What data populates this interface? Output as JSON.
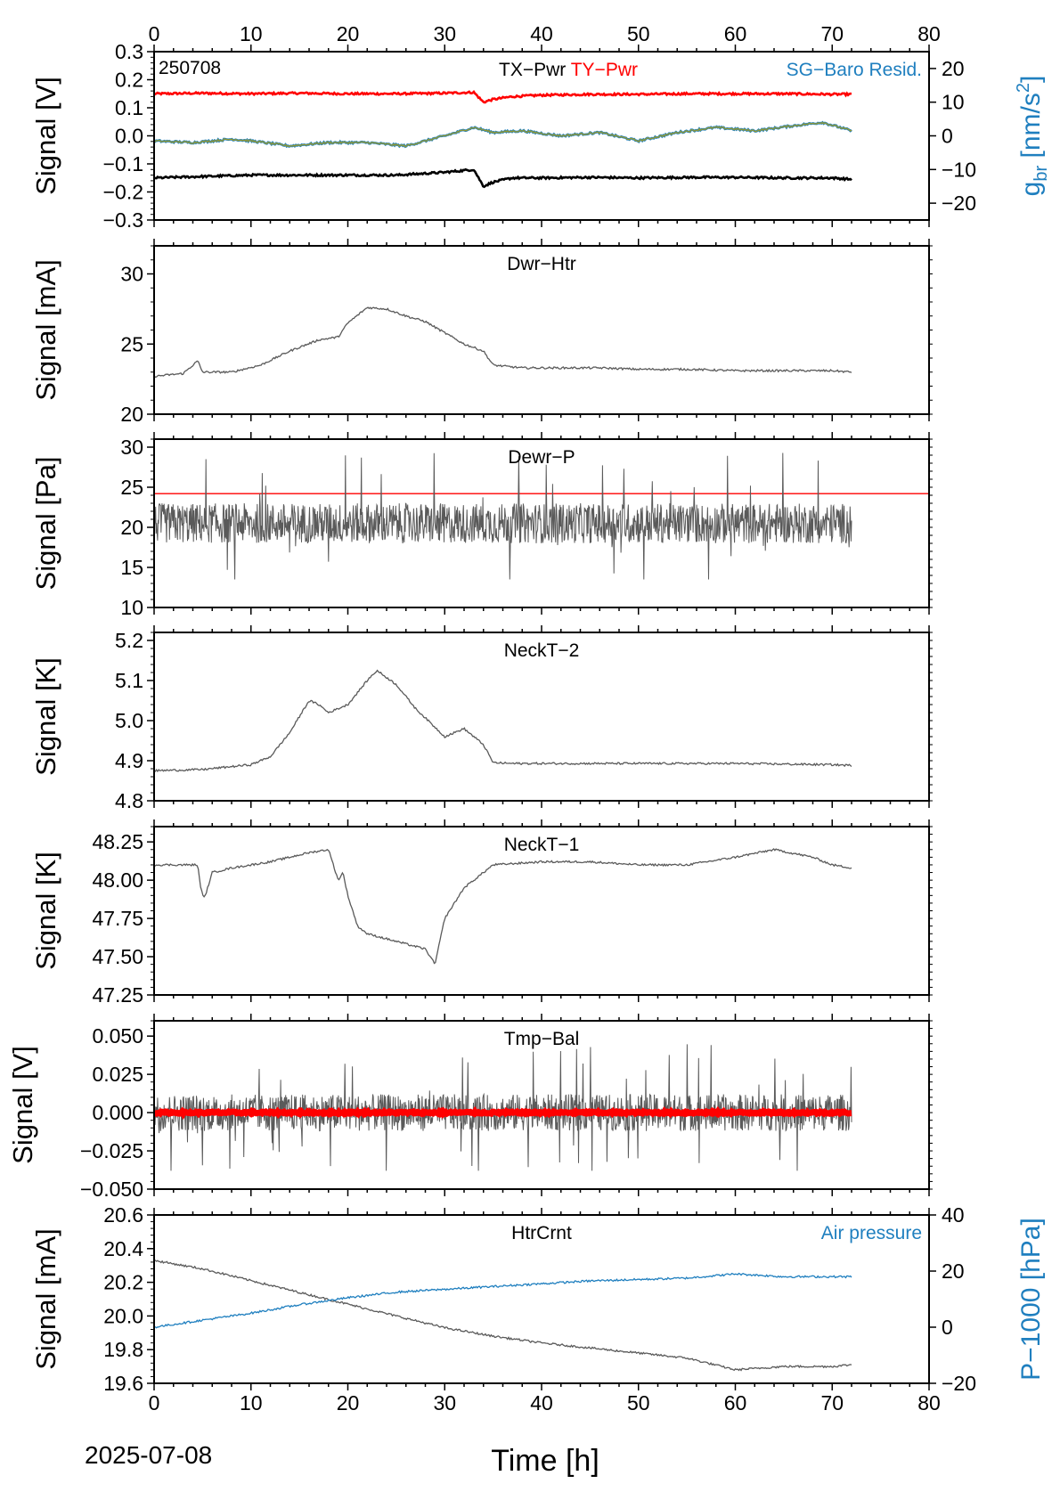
{
  "figure": {
    "date": "2025-07-08",
    "xlabel": "Time [h]",
    "xlim": [
      0,
      80
    ],
    "xticks": [
      0,
      10,
      20,
      30,
      40,
      50,
      60,
      70,
      80
    ],
    "colors": {
      "black": "#000000",
      "red": "#ff0000",
      "blue": "#1f7fbf",
      "gray": "#5a5a5a",
      "olive": "#9a9a2a",
      "axis": "#000000"
    }
  },
  "chart_data": [
    {
      "type": "line",
      "id": "p1",
      "corner_label": "250708",
      "title_parts": [
        {
          "text": "TX−Pwr",
          "color": "#000000"
        },
        {
          "text": "TY−Pwr",
          "color": "#ff0000"
        }
      ],
      "right_legend": {
        "text": "SG−Baro Resid.",
        "color": "#1f7fbf"
      },
      "ylabel": "Signal [V]",
      "ylim": [
        -0.3,
        0.3
      ],
      "yticks": [
        -0.3,
        -0.2,
        -0.1,
        0.0,
        0.1,
        0.2,
        0.3
      ],
      "ytick_labels": [
        "−0.3",
        "−0.2",
        "−0.1",
        "0.0",
        "0.1",
        "0.2",
        "0.3"
      ],
      "right_axis": {
        "label": "g_br [nm/s²]",
        "label_main": "g",
        "label_sub": "br",
        "label_rest": " [nm/s",
        "label_sup": "2",
        "label_end": "]",
        "ylim": [
          -25,
          25
        ],
        "yticks": [
          -20,
          -10,
          0,
          10,
          20
        ],
        "ytick_labels": [
          "−20",
          "−10",
          "0",
          "10",
          "20"
        ],
        "color": "#1f7fbf"
      },
      "series": [
        {
          "name": "TY−Pwr",
          "color": "#ff0000",
          "x": [
            0,
            5,
            10,
            15,
            20,
            25,
            30,
            33,
            34,
            35,
            37,
            40,
            45,
            50,
            55,
            60,
            65,
            70,
            72
          ],
          "y": [
            0.15,
            0.152,
            0.15,
            0.152,
            0.15,
            0.15,
            0.152,
            0.155,
            0.12,
            0.13,
            0.14,
            0.145,
            0.148,
            0.148,
            0.15,
            0.15,
            0.15,
            0.148,
            0.148
          ]
        },
        {
          "name": "TX−Pwr",
          "color": "#000000",
          "x": [
            0,
            5,
            10,
            15,
            20,
            25,
            30,
            33,
            34,
            35,
            37,
            40,
            45,
            50,
            55,
            60,
            65,
            70,
            72
          ],
          "y": [
            -0.15,
            -0.145,
            -0.14,
            -0.14,
            -0.14,
            -0.14,
            -0.13,
            -0.12,
            -0.18,
            -0.165,
            -0.15,
            -0.15,
            -0.148,
            -0.15,
            -0.148,
            -0.148,
            -0.15,
            -0.15,
            -0.155
          ]
        },
        {
          "name": "SG−Baro Resid.",
          "color": "#1f7fbf",
          "axis": "right",
          "x": [
            0,
            4,
            8,
            10,
            14,
            18,
            22,
            26,
            30,
            33,
            35,
            38,
            42,
            46,
            50,
            54,
            58,
            62,
            66,
            69,
            72
          ],
          "y": [
            -1.5,
            -2,
            -1,
            -1.5,
            -3,
            -2,
            -2,
            -3,
            0,
            2.5,
            1,
            1.5,
            0,
            1,
            -1.5,
            1,
            2.5,
            1.5,
            3,
            4,
            1.5
          ]
        }
      ]
    },
    {
      "type": "line",
      "id": "p2",
      "title": "Dwr−Htr",
      "ylabel": "Signal [mA]",
      "ylim": [
        20,
        32
      ],
      "yticks": [
        20,
        25,
        30
      ],
      "ytick_labels": [
        "20",
        "25",
        "30"
      ],
      "series": [
        {
          "color": "#5a5a5a",
          "x": [
            0,
            3,
            4.5,
            5,
            8,
            11,
            14,
            17,
            19,
            20,
            22,
            24,
            26,
            28,
            30,
            32,
            34,
            35,
            38,
            42,
            46,
            50,
            55,
            60,
            65,
            70,
            72
          ],
          "y": [
            22.7,
            22.9,
            23.8,
            23.0,
            23.0,
            23.5,
            24.5,
            25.3,
            25.5,
            26.5,
            27.6,
            27.5,
            27.0,
            26.6,
            25.8,
            25.0,
            24.5,
            23.5,
            23.3,
            23.3,
            23.3,
            23.2,
            23.2,
            23.1,
            23.1,
            23.1,
            23.0
          ]
        }
      ]
    },
    {
      "type": "line",
      "id": "p3",
      "title": "Dewr−P",
      "ylabel": "Signal [Pa]",
      "ylim": [
        10,
        31
      ],
      "yticks": [
        10,
        15,
        20,
        25,
        30
      ],
      "ytick_labels": [
        "10",
        "15",
        "20",
        "25",
        "30"
      ],
      "reference_line": {
        "y": 24.2,
        "color": "#ff0000"
      },
      "series": [
        {
          "color": "#5a5a5a",
          "noise_band": true,
          "x": [
            0,
            72
          ],
          "y": [
            20.5,
            20.5
          ],
          "band_low": 18.0,
          "band_high": 23.0,
          "spike_min": 13.5,
          "spike_max": 29.3
        }
      ]
    },
    {
      "type": "line",
      "id": "p4",
      "title": "NeckT−2",
      "ylabel": "Signal [K]",
      "ylim": [
        4.8,
        5.22
      ],
      "yticks": [
        4.8,
        4.9,
        5.0,
        5.1,
        5.2
      ],
      "ytick_labels": [
        "4.8",
        "4.9",
        "5.0",
        "5.1",
        "5.2"
      ],
      "series": [
        {
          "color": "#5a5a5a",
          "x": [
            0,
            5,
            10,
            12,
            14,
            16,
            17,
            18,
            20,
            22,
            23,
            25,
            27,
            30,
            32,
            34,
            35,
            37,
            40,
            50,
            60,
            70,
            72
          ],
          "y": [
            4.875,
            4.878,
            4.89,
            4.91,
            4.97,
            5.05,
            5.04,
            5.02,
            5.04,
            5.1,
            5.125,
            5.09,
            5.03,
            4.96,
            4.98,
            4.94,
            4.895,
            4.893,
            4.893,
            4.893,
            4.893,
            4.89,
            4.888
          ]
        }
      ]
    },
    {
      "type": "line",
      "id": "p5",
      "title": "NeckT−1",
      "ylabel": "Signal [K]",
      "ylim": [
        47.25,
        48.35
      ],
      "yticks": [
        47.25,
        47.5,
        47.75,
        48.0,
        48.25
      ],
      "ytick_labels": [
        "47.25",
        "47.50",
        "47.75",
        "48.00",
        "48.25"
      ],
      "series": [
        {
          "color": "#5a5a5a",
          "x": [
            0,
            4.5,
            4.8,
            5.2,
            6,
            8,
            12,
            16,
            18,
            19,
            19.5,
            20,
            21,
            22,
            25,
            28,
            29,
            29.5,
            30,
            32,
            35,
            40,
            45,
            50,
            55,
            60,
            64,
            68,
            70,
            72
          ],
          "y": [
            48.1,
            48.1,
            47.95,
            47.88,
            48.05,
            48.08,
            48.12,
            48.18,
            48.2,
            48.0,
            48.05,
            47.9,
            47.7,
            47.65,
            47.6,
            47.55,
            47.45,
            47.6,
            47.75,
            47.95,
            48.1,
            48.12,
            48.12,
            48.1,
            48.1,
            48.15,
            48.2,
            48.15,
            48.1,
            48.08
          ]
        }
      ]
    },
    {
      "type": "line",
      "id": "p6",
      "title": "Tmp−Bal",
      "ylabel": "Signal [V]",
      "ylim": [
        -0.05,
        0.06
      ],
      "yticks": [
        -0.05,
        -0.025,
        0.0,
        0.025,
        0.05
      ],
      "ytick_labels": [
        "−0.050",
        "−0.025",
        "0.000",
        "0.025",
        "0.050"
      ],
      "series": [
        {
          "color": "#5a5a5a",
          "noise_band": true,
          "x": [
            0,
            72
          ],
          "y": [
            0.0,
            0.0
          ],
          "band_low": -0.012,
          "band_high": 0.012,
          "spike_min": -0.038,
          "spike_max": 0.046
        },
        {
          "color": "#ff0000",
          "x": [
            0,
            72
          ],
          "y": [
            0.0,
            0.0
          ]
        }
      ]
    },
    {
      "type": "line",
      "id": "p7",
      "title": "HtrCrnt",
      "ylabel": "Signal [mA]",
      "ylim": [
        19.6,
        20.6
      ],
      "yticks": [
        19.6,
        19.8,
        20.0,
        20.2,
        20.4,
        20.6
      ],
      "ytick_labels": [
        "19.6",
        "19.8",
        "20.0",
        "20.2",
        "20.4",
        "20.6"
      ],
      "right_legend": {
        "text": "Air pressure",
        "color": "#1f7fbf"
      },
      "right_axis": {
        "label": "P−1000 [hPa]",
        "ylim": [
          -20,
          40
        ],
        "yticks": [
          -20,
          0,
          20,
          40
        ],
        "ytick_labels": [
          "−20",
          "0",
          "20",
          "40"
        ],
        "color": "#1f7fbf"
      },
      "series": [
        {
          "name": "HtrCrnt",
          "color": "#5a5a5a",
          "x": [
            0,
            5,
            10,
            15,
            20,
            25,
            30,
            35,
            40,
            45,
            50,
            55,
            60,
            65,
            70,
            72
          ],
          "y": [
            20.33,
            20.28,
            20.21,
            20.14,
            20.07,
            20.0,
            19.93,
            19.88,
            19.84,
            19.81,
            19.78,
            19.75,
            19.68,
            19.7,
            19.7,
            19.71
          ]
        },
        {
          "name": "Air pressure",
          "color": "#1f7fbf",
          "axis": "right",
          "x": [
            0,
            5,
            10,
            15,
            20,
            25,
            30,
            35,
            40,
            45,
            50,
            55,
            60,
            65,
            70,
            72
          ],
          "y": [
            0,
            2.5,
            5,
            8,
            10.5,
            12.5,
            13.5,
            14.5,
            15.5,
            16.5,
            17,
            17.5,
            19,
            18,
            18,
            18
          ]
        }
      ]
    }
  ]
}
